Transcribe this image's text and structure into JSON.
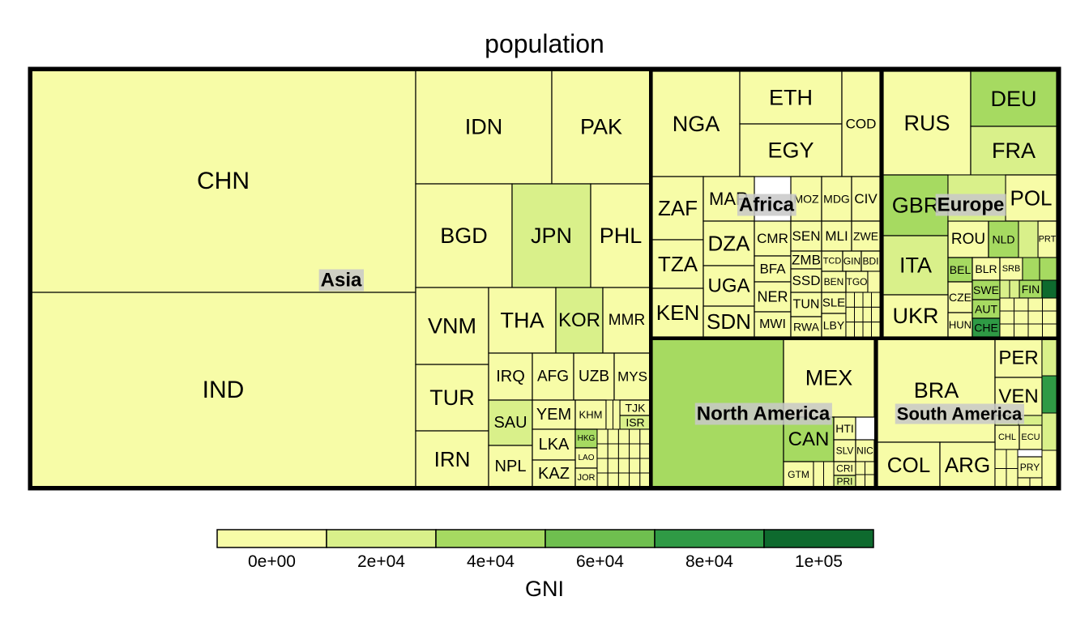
{
  "chart_data": {
    "type": "treemap",
    "title": "population",
    "size_variable": "population",
    "color_variable": "GNI",
    "legend": {
      "title": "GNI",
      "position": "bottom",
      "ticks": [
        "0e+00",
        "2e+04",
        "4e+04",
        "6e+04",
        "8e+04",
        "1e+05"
      ],
      "colors": [
        "#f7fca7",
        "#d9f08a",
        "#a6da61",
        "#6fbf4f",
        "#2f9a45",
        "#0e6a2e"
      ]
    },
    "groups": [
      {
        "name": "Asia",
        "countries": [
          {
            "code": "CHN",
            "gni": 8000
          },
          {
            "code": "IND",
            "gni": 1600
          },
          {
            "code": "IDN",
            "gni": 3600
          },
          {
            "code": "PAK",
            "gni": 1400
          },
          {
            "code": "BGD",
            "gni": 1300
          },
          {
            "code": "JPN",
            "gni": 38000
          },
          {
            "code": "PHL",
            "gni": 3500
          },
          {
            "code": "VNM",
            "gni": 2100
          },
          {
            "code": "THA",
            "gni": 5600
          },
          {
            "code": "KOR",
            "gni": 27000
          },
          {
            "code": "MMR",
            "gni": 1200
          },
          {
            "code": "TUR",
            "gni": 11000
          },
          {
            "code": "IRN",
            "gni": 5500
          },
          {
            "code": "IRQ",
            "gni": 5000
          },
          {
            "code": "AFG",
            "gni": 600
          },
          {
            "code": "UZB",
            "gni": 2200
          },
          {
            "code": "MYS",
            "gni": 9900
          },
          {
            "code": "SAU",
            "gni": 21000
          },
          {
            "code": "YEM",
            "gni": 1000
          },
          {
            "code": "KHM",
            "gni": 1100
          },
          {
            "code": "TJK",
            "gni": 1100
          },
          {
            "code": "ISR",
            "gni": 37000
          },
          {
            "code": "NPL",
            "gni": 700
          },
          {
            "code": "LKA",
            "gni": 3800
          },
          {
            "code": "HKG",
            "gni": 44000
          },
          {
            "code": "LAO",
            "gni": 2000
          },
          {
            "code": "KAZ",
            "gni": 8800
          },
          {
            "code": "JOR",
            "gni": 3900
          }
        ]
      },
      {
        "name": "Africa",
        "countries": [
          {
            "code": "NGA",
            "gni": 2400
          },
          {
            "code": "ETH",
            "gni": 700
          },
          {
            "code": "EGY",
            "gni": 3400
          },
          {
            "code": "COD",
            "gni": 400
          },
          {
            "code": "ZAF",
            "gni": 5500
          },
          {
            "code": "MAR",
            "gni": 2900
          },
          {
            "code": "MOZ",
            "gni": 500
          },
          {
            "code": "MDG",
            "gni": 400
          },
          {
            "code": "CIV",
            "gni": 1500
          },
          {
            "code": "TZA",
            "gni": 900
          },
          {
            "code": "DZA",
            "gni": 4200
          },
          {
            "code": "CMR",
            "gni": 1400
          },
          {
            "code": "SEN",
            "gni": 1300
          },
          {
            "code": "MLI",
            "gni": 800
          },
          {
            "code": "ZWE",
            "gni": 1100
          },
          {
            "code": "UGA",
            "gni": 600
          },
          {
            "code": "BFA",
            "gni": 600
          },
          {
            "code": "ZMB",
            "gni": 1300
          },
          {
            "code": "TCD",
            "gni": 700
          },
          {
            "code": "GIN",
            "gni": 800
          },
          {
            "code": "BDI",
            "gni": 300
          },
          {
            "code": "KEN",
            "gni": 1400
          },
          {
            "code": "SDN",
            "gni": 2400
          },
          {
            "code": "NER",
            "gni": 400
          },
          {
            "code": "SSD",
            "gni": 400
          },
          {
            "code": "BEN",
            "gni": 800
          },
          {
            "code": "TGO",
            "gni": 600
          },
          {
            "code": "MWI",
            "gni": 300
          },
          {
            "code": "TUN",
            "gni": 3500
          },
          {
            "code": "SLE",
            "gni": 500
          },
          {
            "code": "RWA",
            "gni": 700
          },
          {
            "code": "LBY",
            "gni": 6500
          }
        ]
      },
      {
        "name": "Europe",
        "countries": [
          {
            "code": "RUS",
            "gni": 11000
          },
          {
            "code": "DEU",
            "gni": 43000
          },
          {
            "code": "FRA",
            "gni": 38000
          },
          {
            "code": "GBR",
            "gni": 40000
          },
          {
            "code": "POL",
            "gni": 12000
          },
          {
            "code": "ITA",
            "gni": 31000
          },
          {
            "code": "ROU",
            "gni": 9500
          },
          {
            "code": "NLD",
            "gni": 46000
          },
          {
            "code": "PRT",
            "gni": 19000
          },
          {
            "code": "BEL",
            "gni": 42000
          },
          {
            "code": "BLR",
            "gni": 5600
          },
          {
            "code": "SRB",
            "gni": 5300
          },
          {
            "code": "CZE",
            "gni": 18000
          },
          {
            "code": "SWE",
            "gni": 52000
          },
          {
            "code": "FIN",
            "gni": 45000
          },
          {
            "code": "UKR",
            "gni": 2300
          },
          {
            "code": "HUN",
            "gni": 12000
          },
          {
            "code": "AUT",
            "gni": 45000
          },
          {
            "code": "IRL",
            "gni": 52000
          },
          {
            "code": "CHE",
            "gni": 81000
          }
        ]
      },
      {
        "name": "North America",
        "countries": [
          {
            "code": "USA",
            "gni": 58000
          },
          {
            "code": "MEX",
            "gni": 9000
          },
          {
            "code": "CAN",
            "gni": 44000
          },
          {
            "code": "HTI",
            "gni": 800
          },
          {
            "code": "SLV",
            "gni": 3600
          },
          {
            "code": "NIC",
            "gni": 2100
          },
          {
            "code": "GTM",
            "gni": 4100
          },
          {
            "code": "CRI",
            "gni": 11000
          },
          {
            "code": "PRI",
            "gni": 20000
          }
        ]
      },
      {
        "name": "South America",
        "countries": [
          {
            "code": "BRA",
            "gni": 8600
          },
          {
            "code": "PER",
            "gni": 6000
          },
          {
            "code": "VEN",
            "gni": 13000
          },
          {
            "code": "CHL",
            "gni": 13600
          },
          {
            "code": "ECU",
            "gni": 6100
          },
          {
            "code": "COL",
            "gni": 5900
          },
          {
            "code": "ARG",
            "gni": 13000
          },
          {
            "code": "PRY",
            "gni": 5500
          }
        ]
      }
    ]
  }
}
